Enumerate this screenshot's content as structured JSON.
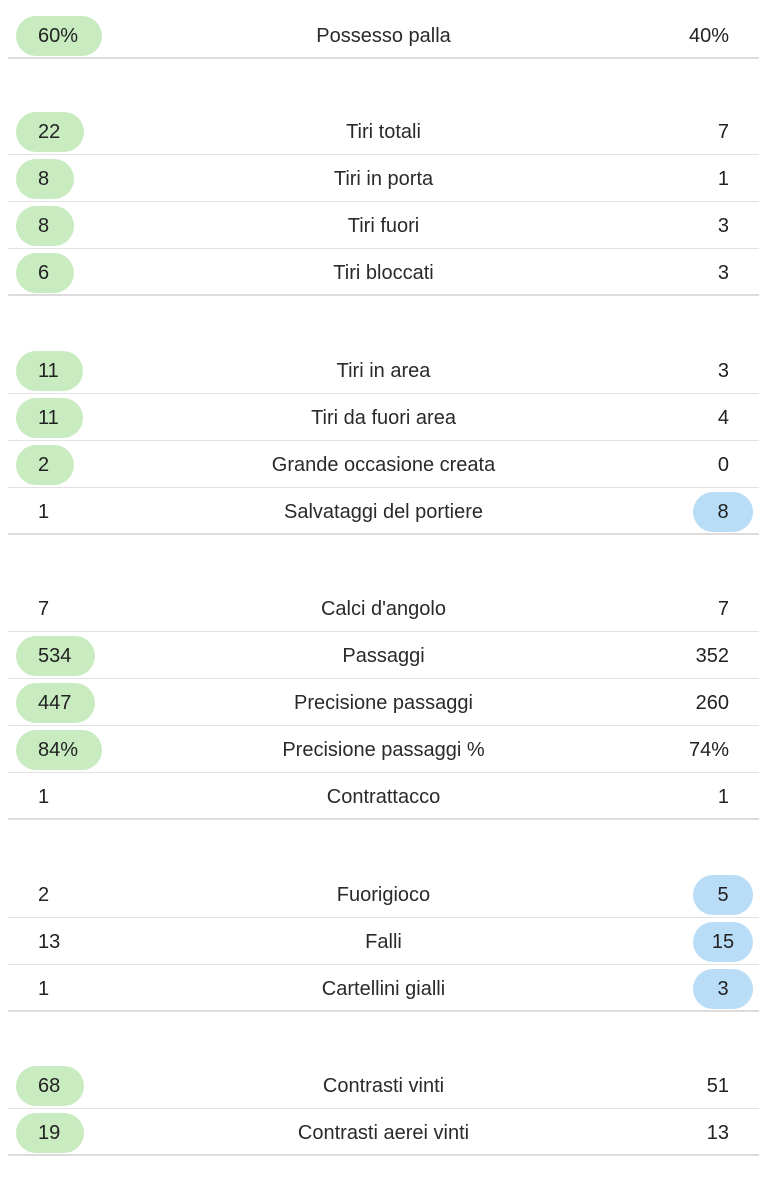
{
  "colors": {
    "home_highlight": "#c9ebc0",
    "away_highlight": "#b9dcf7",
    "divider": "#e2e2e2"
  },
  "groups": [
    {
      "rows": [
        {
          "label": "Possesso palla",
          "home": "60%",
          "away": "40%",
          "highlight": "home"
        }
      ]
    },
    {
      "rows": [
        {
          "label": "Tiri totali",
          "home": "22",
          "away": "7",
          "highlight": "home"
        },
        {
          "label": "Tiri in porta",
          "home": "8",
          "away": "1",
          "highlight": "home"
        },
        {
          "label": "Tiri fuori",
          "home": "8",
          "away": "3",
          "highlight": "home"
        },
        {
          "label": "Tiri bloccati",
          "home": "6",
          "away": "3",
          "highlight": "home"
        }
      ]
    },
    {
      "rows": [
        {
          "label": "Tiri in area",
          "home": "11",
          "away": "3",
          "highlight": "home"
        },
        {
          "label": "Tiri da fuori area",
          "home": "11",
          "away": "4",
          "highlight": "home"
        },
        {
          "label": "Grande occasione creata",
          "home": "2",
          "away": "0",
          "highlight": "home"
        },
        {
          "label": "Salvataggi del portiere",
          "home": "1",
          "away": "8",
          "highlight": "away"
        }
      ]
    },
    {
      "rows": [
        {
          "label": "Calci d'angolo",
          "home": "7",
          "away": "7",
          "highlight": "none"
        },
        {
          "label": "Passaggi",
          "home": "534",
          "away": "352",
          "highlight": "home"
        },
        {
          "label": "Precisione passaggi",
          "home": "447",
          "away": "260",
          "highlight": "home"
        },
        {
          "label": "Precisione passaggi %",
          "home": "84%",
          "away": "74%",
          "highlight": "home"
        },
        {
          "label": "Contrattacco",
          "home": "1",
          "away": "1",
          "highlight": "none"
        }
      ]
    },
    {
      "rows": [
        {
          "label": "Fuorigioco",
          "home": "2",
          "away": "5",
          "highlight": "away"
        },
        {
          "label": "Falli",
          "home": "13",
          "away": "15",
          "highlight": "away"
        },
        {
          "label": "Cartellini gialli",
          "home": "1",
          "away": "3",
          "highlight": "away"
        }
      ]
    },
    {
      "rows": [
        {
          "label": "Contrasti vinti",
          "home": "68",
          "away": "51",
          "highlight": "home"
        },
        {
          "label": "Contrasti aerei vinti",
          "home": "19",
          "away": "13",
          "highlight": "home"
        }
      ]
    }
  ]
}
